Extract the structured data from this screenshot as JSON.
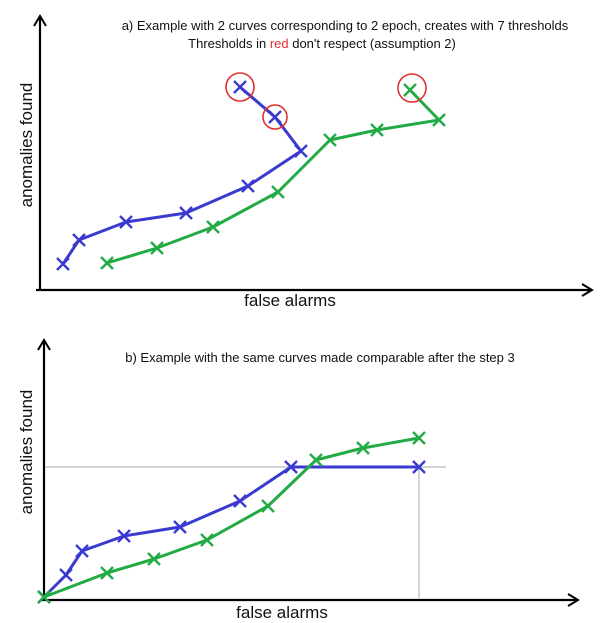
{
  "panel_a": {
    "title_line1": "a) Example with 2 curves corresponding to 2 epoch, creates with 7 thresholds",
    "title_line2_before": "Thresholds in ",
    "title_line2_red": "red",
    "title_line2_after": " don't respect (assumption 2)",
    "xlabel": "false alarms",
    "ylabel": "anomalies found"
  },
  "panel_b": {
    "title": "b) Example with the same curves made comparable after the step 3",
    "xlabel": "false alarms",
    "ylabel": "anomalies found"
  },
  "colors": {
    "blue": "#3a3ad0",
    "green": "#22aa44",
    "red": "#e03030",
    "axis": "#000000",
    "guide": "#bbbbbb"
  }
}
